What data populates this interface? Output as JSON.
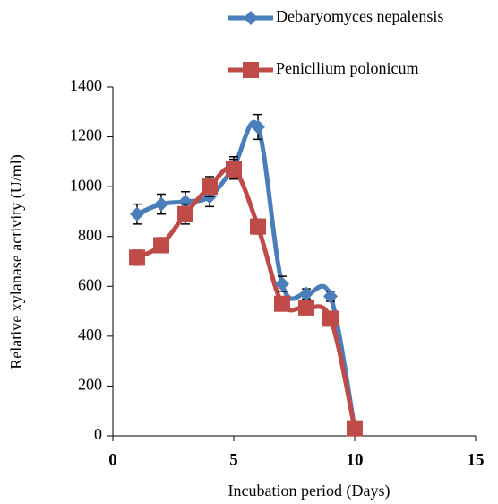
{
  "chart_data": {
    "type": "line",
    "smooth": true,
    "x_label": "Incubation period (Days)",
    "y_label": "Relative xylanase activity (U/ml)",
    "x": [
      1,
      2,
      3,
      4,
      5,
      6,
      7,
      8,
      9,
      10
    ],
    "series": [
      {
        "name": "Debaryomyces nepalensis",
        "color": "#4a7ebb",
        "marker": "diamond",
        "values": [
          890,
          930,
          940,
          960,
          1080,
          1240,
          610,
          570,
          560,
          30
        ],
        "errors": [
          40,
          40,
          40,
          40,
          40,
          50,
          30,
          20,
          20,
          20
        ]
      },
      {
        "name": "Penicllium polonicum",
        "color": "#be4b48",
        "marker": "square",
        "values": [
          715,
          765,
          890,
          1000,
          1070,
          840,
          530,
          515,
          470,
          30
        ],
        "errors": [
          30,
          30,
          40,
          40,
          40,
          30,
          20,
          20,
          20,
          20
        ]
      }
    ],
    "xlim": [
      0,
      15
    ],
    "xticks": [
      0,
      5,
      10,
      15
    ],
    "ylim": [
      0,
      1400
    ],
    "yticks": [
      0,
      200,
      400,
      600,
      800,
      1000,
      1200,
      1400
    ],
    "grid": false,
    "legend": "top"
  }
}
